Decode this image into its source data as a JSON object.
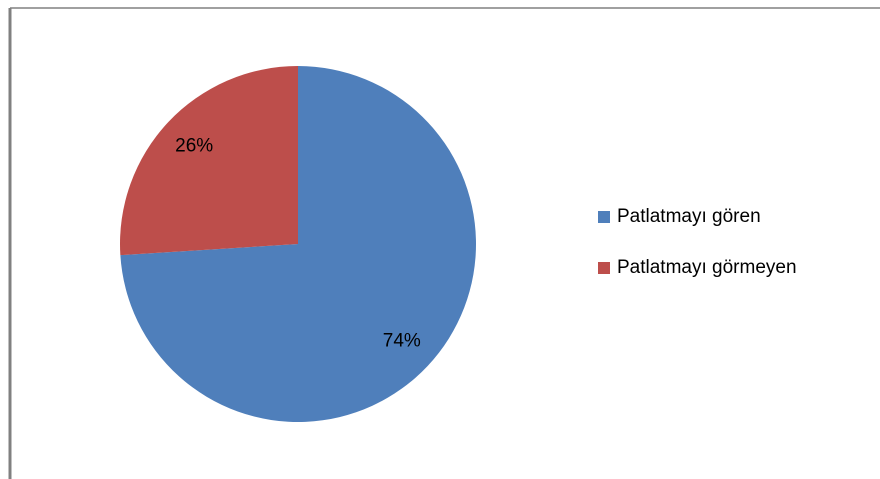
{
  "chart_data": {
    "type": "pie",
    "categories": [
      "Patlatmayı gören",
      "Patlatmayı görmeyen"
    ],
    "values": [
      74,
      26
    ],
    "value_labels": [
      "74%",
      "26%"
    ],
    "colors": [
      "#4f7fbb",
      "#bd4e4b"
    ],
    "legend": "right"
  }
}
